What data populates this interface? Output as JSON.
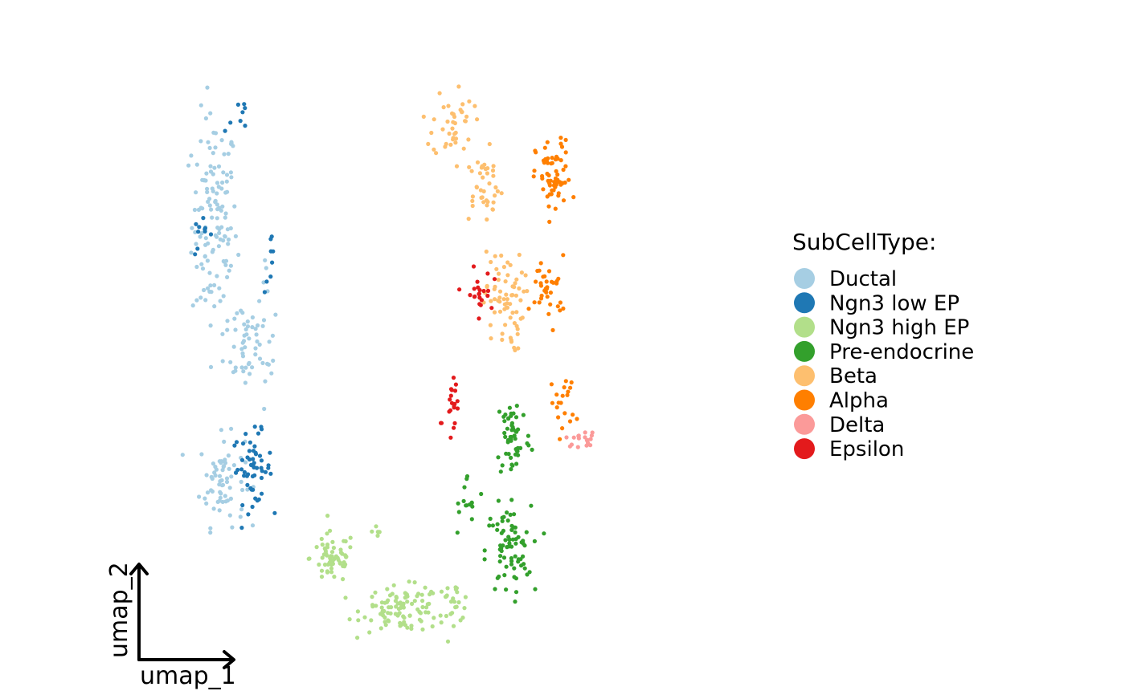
{
  "chart_data": {
    "type": "scatter",
    "xlabel": "umap_1",
    "ylabel": "umap_2",
    "xlim": [
      0,
      12
    ],
    "ylim": [
      0,
      10
    ],
    "grid": false,
    "legend": {
      "title": "SubCellType:",
      "placement": "right"
    },
    "series": [
      {
        "name": "Ductal",
        "color": "#A6CEE3",
        "regions": [
          {
            "center": [
              1.55,
              7.2
            ],
            "spread": [
              0.45,
              1.7
            ],
            "count": 130
          },
          {
            "center": [
              2.15,
              5.4
            ],
            "spread": [
              0.4,
              0.8
            ],
            "count": 40
          },
          {
            "center": [
              1.7,
              3.2
            ],
            "spread": [
              0.45,
              0.7
            ],
            "count": 70
          },
          {
            "center": [
              2.6,
              5.6
            ],
            "spread": [
              0.2,
              1.2
            ],
            "count": 20
          }
        ]
      },
      {
        "name": "Ngn3 low EP",
        "color": "#1F78B4",
        "regions": [
          {
            "center": [
              2.3,
              3.4
            ],
            "spread": [
              0.4,
              0.55
            ],
            "count": 55
          },
          {
            "center": [
              1.3,
              7.0
            ],
            "spread": [
              0.2,
              0.3
            ],
            "count": 10
          },
          {
            "center": [
              2.7,
              6.6
            ],
            "spread": [
              0.15,
              0.5
            ],
            "count": 8
          },
          {
            "center": [
              2.0,
              8.8
            ],
            "spread": [
              0.3,
              0.5
            ],
            "count": 8
          }
        ]
      },
      {
        "name": "Ngn3 high EP",
        "color": "#B2DF8A",
        "regions": [
          {
            "center": [
              3.9,
              2.0
            ],
            "spread": [
              0.45,
              0.4
            ],
            "count": 60
          },
          {
            "center": [
              5.3,
              1.2
            ],
            "spread": [
              0.8,
              0.35
            ],
            "count": 100
          },
          {
            "center": [
              6.3,
              1.3
            ],
            "spread": [
              0.35,
              0.3
            ],
            "count": 25
          },
          {
            "center": [
              4.8,
              2.4
            ],
            "spread": [
              0.1,
              0.2
            ],
            "count": 5
          }
        ]
      },
      {
        "name": "Pre-endocrine",
        "color": "#33A02C",
        "regions": [
          {
            "center": [
              7.4,
              2.1
            ],
            "spread": [
              0.45,
              0.7
            ],
            "count": 75
          },
          {
            "center": [
              7.5,
              3.9
            ],
            "spread": [
              0.35,
              0.7
            ],
            "count": 55
          },
          {
            "center": [
              6.6,
              2.8
            ],
            "spread": [
              0.35,
              0.5
            ],
            "count": 15
          }
        ]
      },
      {
        "name": "Beta",
        "color": "#FDBF6F",
        "regions": [
          {
            "center": [
              6.3,
              8.8
            ],
            "spread": [
              0.4,
              0.6
            ],
            "count": 40
          },
          {
            "center": [
              6.9,
              7.8
            ],
            "spread": [
              0.4,
              0.55
            ],
            "count": 40
          },
          {
            "center": [
              7.3,
              6.0
            ],
            "spread": [
              0.4,
              0.8
            ],
            "count": 70
          }
        ]
      },
      {
        "name": "Alpha",
        "color": "#FF7F00",
        "regions": [
          {
            "center": [
              8.3,
              7.9
            ],
            "spread": [
              0.35,
              0.6
            ],
            "count": 65
          },
          {
            "center": [
              8.2,
              6.2
            ],
            "spread": [
              0.35,
              0.5
            ],
            "count": 35
          },
          {
            "center": [
              8.5,
              4.4
            ],
            "spread": [
              0.25,
              0.5
            ],
            "count": 20
          }
        ]
      },
      {
        "name": "Delta",
        "color": "#FB9A99",
        "regions": [
          {
            "center": [
              8.9,
              3.85
            ],
            "spread": [
              0.35,
              0.12
            ],
            "count": 18
          }
        ]
      },
      {
        "name": "Epsilon",
        "color": "#E31A1C",
        "regions": [
          {
            "center": [
              6.8,
              6.1
            ],
            "spread": [
              0.25,
              0.4
            ],
            "count": 22
          },
          {
            "center": [
              6.3,
              4.5
            ],
            "spread": [
              0.2,
              0.4
            ],
            "count": 18
          },
          {
            "center": [
              6.1,
              4.1
            ],
            "spread": [
              0.05,
              0.05
            ],
            "count": 2
          }
        ]
      }
    ]
  }
}
